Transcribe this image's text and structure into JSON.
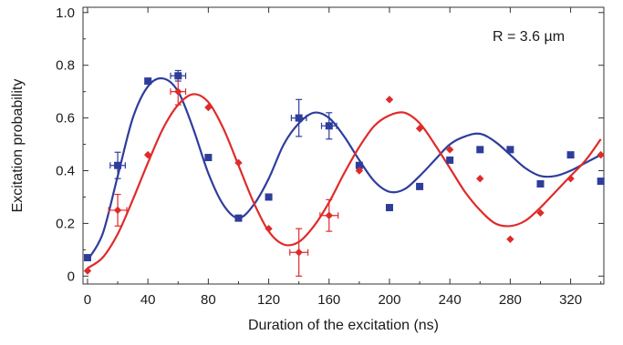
{
  "chart_data": {
    "type": "scatter",
    "xlabel": "Duration of the excitation (ns)",
    "ylabel": "Excitation probability",
    "xlim": [
      -3,
      342
    ],
    "ylim": [
      -0.03,
      1.02
    ],
    "xticks": [
      0,
      40,
      80,
      120,
      160,
      200,
      240,
      280,
      320
    ],
    "xtick_labels": [
      "0",
      "40",
      "80",
      "120",
      "160",
      "200",
      "240",
      "280",
      "320"
    ],
    "yticks": [
      0,
      0.2,
      0.4,
      0.6,
      0.8,
      1.0
    ],
    "ytick_labels": [
      "0",
      "0.2",
      "0.4",
      "0.6",
      "0.8",
      "1.0"
    ],
    "grid": false,
    "legend": "none",
    "annotation": "R = 3.6 µm",
    "series": [
      {
        "color": "#2e3d9c",
        "marker": "square",
        "points": [
          {
            "x": 0,
            "y": 0.07
          },
          {
            "x": 20,
            "y": 0.42,
            "xerr": 5,
            "yerr": 0.05
          },
          {
            "x": 40,
            "y": 0.74
          },
          {
            "x": 60,
            "y": 0.76,
            "xerr": 5,
            "yerr": 0.02
          },
          {
            "x": 80,
            "y": 0.45
          },
          {
            "x": 100,
            "y": 0.22
          },
          {
            "x": 120,
            "y": 0.3
          },
          {
            "x": 140,
            "y": 0.6,
            "xerr": 5,
            "yerr": 0.07
          },
          {
            "x": 160,
            "y": 0.57,
            "xerr": 5,
            "yerr": 0.05
          },
          {
            "x": 180,
            "y": 0.42
          },
          {
            "x": 200,
            "y": 0.26
          },
          {
            "x": 220,
            "y": 0.34
          },
          {
            "x": 240,
            "y": 0.44
          },
          {
            "x": 260,
            "y": 0.48
          },
          {
            "x": 280,
            "y": 0.48
          },
          {
            "x": 300,
            "y": 0.35
          },
          {
            "x": 320,
            "y": 0.46
          },
          {
            "x": 340,
            "y": 0.36
          }
        ],
        "fit": [
          [
            0,
            0.06
          ],
          [
            10,
            0.16
          ],
          [
            20,
            0.38
          ],
          [
            30,
            0.6
          ],
          [
            40,
            0.72
          ],
          [
            50,
            0.75
          ],
          [
            60,
            0.7
          ],
          [
            70,
            0.56
          ],
          [
            80,
            0.39
          ],
          [
            90,
            0.27
          ],
          [
            100,
            0.22
          ],
          [
            110,
            0.27
          ],
          [
            120,
            0.37
          ],
          [
            130,
            0.5
          ],
          [
            140,
            0.58
          ],
          [
            150,
            0.62
          ],
          [
            160,
            0.6
          ],
          [
            170,
            0.53
          ],
          [
            180,
            0.44
          ],
          [
            190,
            0.36
          ],
          [
            200,
            0.32
          ],
          [
            210,
            0.33
          ],
          [
            220,
            0.38
          ],
          [
            230,
            0.44
          ],
          [
            240,
            0.5
          ],
          [
            250,
            0.53
          ],
          [
            260,
            0.54
          ],
          [
            270,
            0.51
          ],
          [
            280,
            0.46
          ],
          [
            290,
            0.41
          ],
          [
            300,
            0.38
          ],
          [
            310,
            0.38
          ],
          [
            320,
            0.4
          ],
          [
            330,
            0.43
          ],
          [
            340,
            0.46
          ]
        ]
      },
      {
        "color": "#e02a2a",
        "marker": "diamond",
        "points": [
          {
            "x": 0,
            "y": 0.02
          },
          {
            "x": 20,
            "y": 0.25,
            "xerr": 6,
            "yerr": 0.06
          },
          {
            "x": 40,
            "y": 0.46
          },
          {
            "x": 60,
            "y": 0.7,
            "xerr": 5,
            "yerr": 0.05
          },
          {
            "x": 80,
            "y": 0.64
          },
          {
            "x": 100,
            "y": 0.43
          },
          {
            "x": 120,
            "y": 0.18
          },
          {
            "x": 140,
            "y": 0.09,
            "xerr": 6,
            "yerr": 0.09
          },
          {
            "x": 160,
            "y": 0.23,
            "xerr": 6,
            "yerr": 0.06
          },
          {
            "x": 180,
            "y": 0.4
          },
          {
            "x": 200,
            "y": 0.67
          },
          {
            "x": 220,
            "y": 0.56
          },
          {
            "x": 240,
            "y": 0.48
          },
          {
            "x": 260,
            "y": 0.37
          },
          {
            "x": 280,
            "y": 0.14
          },
          {
            "x": 300,
            "y": 0.24
          },
          {
            "x": 320,
            "y": 0.37
          },
          {
            "x": 340,
            "y": 0.46
          }
        ],
        "fit": [
          [
            0,
            0.03
          ],
          [
            10,
            0.07
          ],
          [
            20,
            0.16
          ],
          [
            30,
            0.29
          ],
          [
            40,
            0.43
          ],
          [
            50,
            0.56
          ],
          [
            60,
            0.65
          ],
          [
            70,
            0.69
          ],
          [
            80,
            0.66
          ],
          [
            90,
            0.56
          ],
          [
            100,
            0.42
          ],
          [
            110,
            0.28
          ],
          [
            120,
            0.17
          ],
          [
            130,
            0.12
          ],
          [
            140,
            0.13
          ],
          [
            150,
            0.19
          ],
          [
            160,
            0.28
          ],
          [
            170,
            0.39
          ],
          [
            180,
            0.49
          ],
          [
            190,
            0.57
          ],
          [
            200,
            0.61
          ],
          [
            210,
            0.62
          ],
          [
            220,
            0.58
          ],
          [
            230,
            0.5
          ],
          [
            240,
            0.41
          ],
          [
            250,
            0.32
          ],
          [
            260,
            0.25
          ],
          [
            270,
            0.2
          ],
          [
            280,
            0.19
          ],
          [
            290,
            0.21
          ],
          [
            300,
            0.26
          ],
          [
            310,
            0.32
          ],
          [
            320,
            0.38
          ],
          [
            330,
            0.44
          ],
          [
            340,
            0.52
          ]
        ]
      }
    ]
  }
}
